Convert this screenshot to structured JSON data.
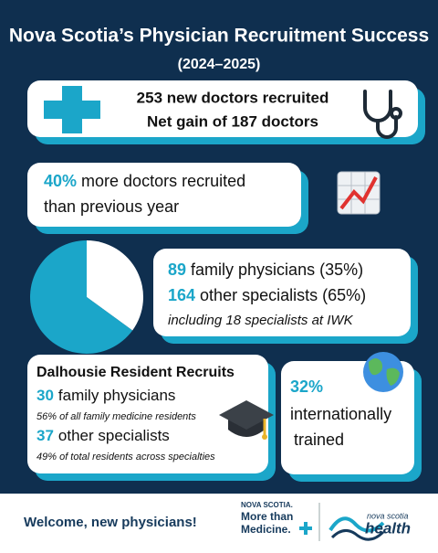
{
  "header": {
    "title": "Nova Scotia’s Physician Recruitment Success",
    "subtitle": "(2024–2025)"
  },
  "recruited": {
    "line1": "253 new doctors recruited",
    "line2": "Net gain of 187 doctors"
  },
  "growth": {
    "highlight": "40%",
    "line1": "more doctors recruited",
    "line2": "than previous year"
  },
  "pie": {
    "values": [
      35,
      65
    ],
    "colors": [
      "#ffffff",
      "#1ba6c9"
    ]
  },
  "split": {
    "family_count": "89",
    "family_text": "family physicians (35%)",
    "other_count": "164",
    "other_text": "other specialists (65%)",
    "note": "including 18 specialists at IWK"
  },
  "dalhousie": {
    "title": "Dalhousie Resident Recruits",
    "family_count": "30",
    "family_text": "family physicians",
    "family_note": "56% of all family medicine residents",
    "other_count": "37",
    "other_text": "other specialists",
    "other_note": "49% of total residents across specialties"
  },
  "international": {
    "highlight": "32%",
    "line1": "internationally",
    "line2": "trained"
  },
  "footer": {
    "welcome": "Welcome, new physicians!",
    "logo1_top": "NOVA SCOTIA.",
    "logo1_line1": "More than",
    "logo1_line2": "Medicine.",
    "logo2_top": "nova scotia",
    "logo2_main": "health"
  }
}
